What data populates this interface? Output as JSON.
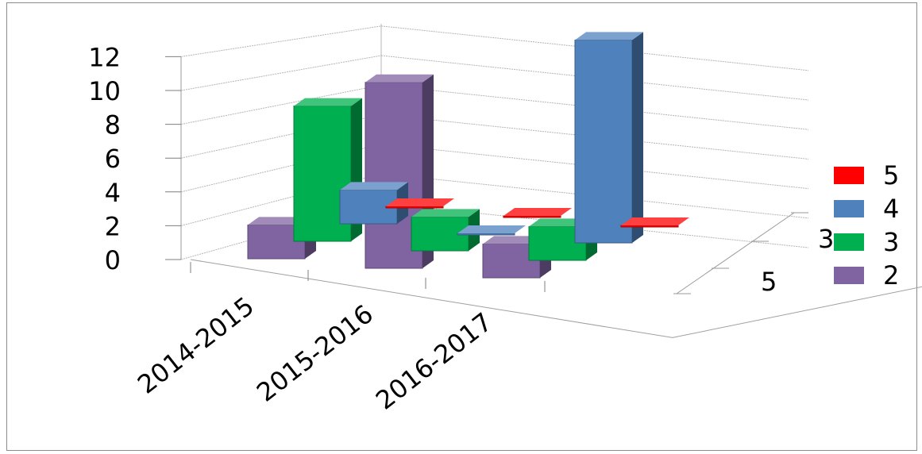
{
  "chart_data": {
    "type": "bar",
    "style": "3d-column",
    "categories": [
      "2014-2015",
      "2015-2016",
      "2016-2017"
    ],
    "series": [
      {
        "name": "5",
        "values": [
          0,
          0,
          0
        ],
        "color": "#ff0000"
      },
      {
        "name": "4",
        "values": [
          2,
          0,
          12
        ],
        "color": "#4f81bd"
      },
      {
        "name": "3",
        "values": [
          8,
          2,
          2
        ],
        "color": "#00b050"
      },
      {
        "name": "2",
        "values": [
          2,
          11,
          2
        ],
        "color": "#8064a2"
      }
    ],
    "depth_axis_labels": [
      "5",
      "3"
    ],
    "yticks": [
      "0",
      "2",
      "4",
      "6",
      "8",
      "10",
      "12"
    ],
    "ylim": [
      0,
      12
    ],
    "grid": true,
    "legend_position": "right"
  }
}
